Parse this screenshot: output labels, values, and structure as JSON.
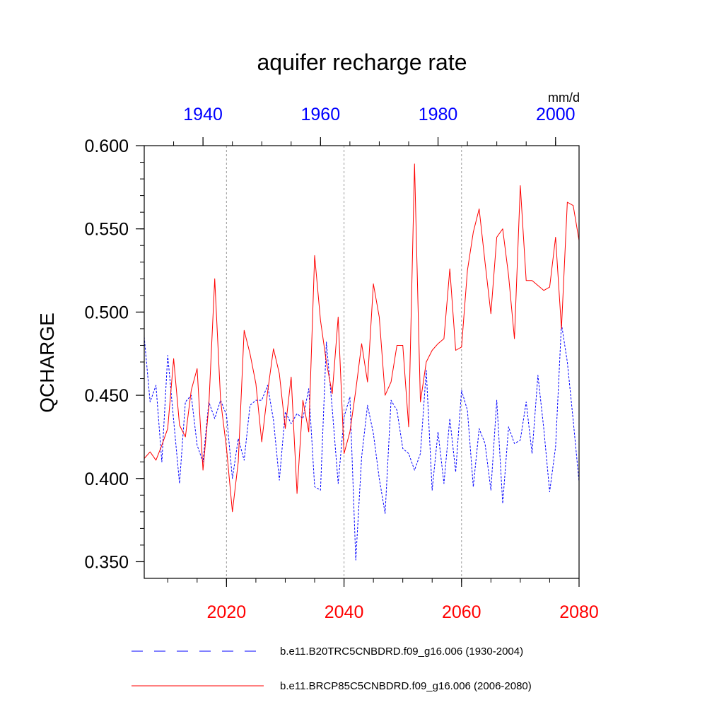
{
  "chart_data": {
    "type": "line",
    "title": "aquifer recharge rate",
    "ylabel": "QCHARGE",
    "units": "mm/d",
    "ylim": [
      0.34,
      0.6
    ],
    "yticks": [
      "0.350",
      "0.400",
      "0.450",
      "0.500",
      "0.550",
      "0.600"
    ],
    "ytick_values": [
      0.35,
      0.4,
      0.45,
      0.5,
      0.55,
      0.6
    ],
    "top_axis": {
      "range": [
        1930,
        2004
      ],
      "ticks": [
        "1940",
        "1960",
        "1980",
        "2000"
      ],
      "tick_values": [
        1940,
        1960,
        1980,
        2000
      ],
      "color": "#0000ff"
    },
    "bottom_axis": {
      "range": [
        2006,
        2080
      ],
      "ticks": [
        "2020",
        "2040",
        "2060",
        "2080"
      ],
      "tick_values": [
        2020,
        2040,
        2060,
        2080
      ],
      "color": "#ff0000"
    },
    "grid": "vertical dotted at bottom-axis ticks",
    "series": [
      {
        "name": "b.e11.B20TRC5CNBDRD.f09_g16.006 (1930-2004)",
        "axis": "top",
        "color": "#0000ff",
        "style": "dashed",
        "x_start": 1930,
        "values": [
          0.485,
          0.446,
          0.456,
          0.41,
          0.474,
          0.435,
          0.397,
          0.446,
          0.45,
          0.42,
          0.41,
          0.446,
          0.436,
          0.447,
          0.438,
          0.4,
          0.424,
          0.411,
          0.444,
          0.447,
          0.447,
          0.456,
          0.435,
          0.399,
          0.44,
          0.433,
          0.439,
          0.436,
          0.454,
          0.395,
          0.393,
          0.482,
          0.442,
          0.397,
          0.437,
          0.449,
          0.351,
          0.413,
          0.444,
          0.427,
          0.4,
          0.379,
          0.447,
          0.441,
          0.418,
          0.415,
          0.405,
          0.415,
          0.465,
          0.393,
          0.428,
          0.397,
          0.436,
          0.404,
          0.453,
          0.441,
          0.395,
          0.43,
          0.421,
          0.393,
          0.447,
          0.385,
          0.431,
          0.421,
          0.423,
          0.446,
          0.415,
          0.462,
          0.43,
          0.392,
          0.419,
          0.493,
          0.47,
          0.435,
          0.398
        ]
      },
      {
        "name": "b.e11.BRCP85C5CNBDRD.f09_g16.006 (2006-2080)",
        "axis": "bottom",
        "color": "#ff0000",
        "style": "solid",
        "x_start": 2006,
        "values": [
          0.412,
          0.416,
          0.411,
          0.42,
          0.43,
          0.472,
          0.432,
          0.425,
          0.453,
          0.466,
          0.405,
          0.444,
          0.52,
          0.447,
          0.418,
          0.38,
          0.41,
          0.489,
          0.475,
          0.457,
          0.422,
          0.452,
          0.478,
          0.463,
          0.43,
          0.461,
          0.391,
          0.447,
          0.428,
          0.534,
          0.495,
          0.47,
          0.451,
          0.497,
          0.415,
          0.428,
          0.453,
          0.481,
          0.458,
          0.517,
          0.497,
          0.45,
          0.458,
          0.48,
          0.48,
          0.431,
          0.589,
          0.446,
          0.47,
          0.477,
          0.481,
          0.484,
          0.526,
          0.477,
          0.479,
          0.525,
          0.548,
          0.562,
          0.53,
          0.499,
          0.545,
          0.55,
          0.522,
          0.484,
          0.576,
          0.519,
          0.519,
          0.516,
          0.513,
          0.515,
          0.545,
          0.49,
          0.566,
          0.564,
          0.543
        ]
      }
    ],
    "legend_position": "below plot"
  }
}
